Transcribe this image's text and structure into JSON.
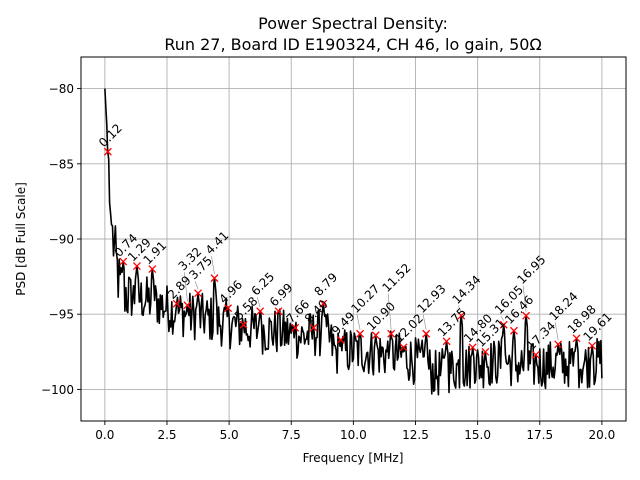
{
  "chart_data": {
    "type": "line",
    "title_lines": [
      "Power Spectral Density:",
      "Run 27, Board ID E190324, CH 46, lo gain, 50Ω"
    ],
    "xlabel": "Frequency [MHz]",
    "ylabel": "PSD [dB Full Scale]",
    "xlim": [
      -0.96,
      20.97
    ],
    "ylim": [
      -102.1,
      -77.9
    ],
    "xticks": [
      0.0,
      2.5,
      5.0,
      7.5,
      10.0,
      12.5,
      15.0,
      17.5,
      20.0
    ],
    "xtick_labels": [
      "0.0",
      "2.5",
      "5.0",
      "7.5",
      "10.0",
      "12.5",
      "15.0",
      "17.5",
      "20.0"
    ],
    "yticks": [
      -80,
      -85,
      -90,
      -95,
      -100
    ],
    "ytick_labels": [
      "−80",
      "−85",
      "−90",
      "−95",
      "−100"
    ],
    "grid": true,
    "line_color": "#000000",
    "marker_color": "#ff0000",
    "grid_color": "#b0b0b0",
    "series": [
      {
        "name": "PSD",
        "baseline": [
          [
            0.0,
            -80.0
          ],
          [
            0.08,
            -82.5
          ],
          [
            0.16,
            -87.0
          ],
          [
            0.24,
            -88.5
          ],
          [
            0.32,
            -90.0
          ],
          [
            0.45,
            -91.5
          ],
          [
            0.6,
            -93.2
          ],
          [
            1.0,
            -93.8
          ],
          [
            1.6,
            -94.0
          ],
          [
            2.2,
            -94.3
          ],
          [
            2.8,
            -94.8
          ],
          [
            3.5,
            -95.1
          ],
          [
            4.2,
            -95.3
          ],
          [
            5.0,
            -95.7
          ],
          [
            6.0,
            -96.0
          ],
          [
            7.0,
            -96.2
          ],
          [
            8.0,
            -96.5
          ],
          [
            8.6,
            -96.2
          ],
          [
            9.0,
            -96.6
          ],
          [
            9.3,
            -97.6
          ],
          [
            10.0,
            -97.4
          ],
          [
            11.0,
            -97.6
          ],
          [
            12.0,
            -97.8
          ],
          [
            12.8,
            -98.3
          ],
          [
            13.3,
            -99.0
          ],
          [
            14.0,
            -98.6
          ],
          [
            15.0,
            -98.4
          ],
          [
            16.0,
            -98.1
          ],
          [
            17.0,
            -98.5
          ],
          [
            18.0,
            -98.3
          ],
          [
            19.0,
            -98.3
          ],
          [
            19.7,
            -98.3
          ],
          [
            20.0,
            -97.9
          ]
        ],
        "noise_amplitude_db": 1.6,
        "f_max": 20.0
      }
    ],
    "peaks": [
      {
        "label": "0.12",
        "x": 0.12,
        "y": -84.2
      },
      {
        "label": "0.74",
        "x": 0.74,
        "y": -91.5
      },
      {
        "label": "1.29",
        "x": 1.29,
        "y": -91.8
      },
      {
        "label": "1.91",
        "x": 1.91,
        "y": -92.0
      },
      {
        "label": "2.89",
        "x": 2.89,
        "y": -94.3
      },
      {
        "label": "3.32",
        "x": 3.32,
        "y": -94.4
      },
      {
        "label": "3.75",
        "x": 3.75,
        "y": -93.6
      },
      {
        "label": "4.41",
        "x": 4.41,
        "y": -92.6
      },
      {
        "label": "4.96",
        "x": 4.96,
        "y": -94.6
      },
      {
        "label": "5.58",
        "x": 5.58,
        "y": -95.7
      },
      {
        "label": "6.25",
        "x": 6.25,
        "y": -94.8
      },
      {
        "label": "6.99",
        "x": 6.99,
        "y": -94.8
      },
      {
        "label": "7.66",
        "x": 7.66,
        "y": -95.9
      },
      {
        "label": "8.40",
        "x": 8.4,
        "y": -95.9
      },
      {
        "label": "8.79",
        "x": 8.79,
        "y": -94.3
      },
      {
        "label": "9.49",
        "x": 9.49,
        "y": -96.7
      },
      {
        "label": "10.27",
        "x": 10.27,
        "y": -96.3
      },
      {
        "label": "10.90",
        "x": 10.9,
        "y": -96.4
      },
      {
        "label": "11.52",
        "x": 11.52,
        "y": -96.3
      },
      {
        "label": "12.02",
        "x": 12.02,
        "y": -97.2
      },
      {
        "label": "12.93",
        "x": 12.93,
        "y": -96.3
      },
      {
        "label": "13.75",
        "x": 13.75,
        "y": -96.8
      },
      {
        "label": "14.34",
        "x": 14.34,
        "y": -95.1
      },
      {
        "label": "14.80",
        "x": 14.8,
        "y": -97.2
      },
      {
        "label": "15.31",
        "x": 15.31,
        "y": -97.5
      },
      {
        "label": "16.05",
        "x": 16.05,
        "y": -95.7
      },
      {
        "label": "16.46",
        "x": 16.46,
        "y": -96.1
      },
      {
        "label": "16.95",
        "x": 16.95,
        "y": -95.1
      },
      {
        "label": "17.34",
        "x": 17.34,
        "y": -97.7
      },
      {
        "label": "18.24",
        "x": 18.24,
        "y": -97.0
      },
      {
        "label": "18.98",
        "x": 18.98,
        "y": -96.6
      },
      {
        "label": "19.61",
        "x": 19.61,
        "y": -97.1
      }
    ]
  }
}
